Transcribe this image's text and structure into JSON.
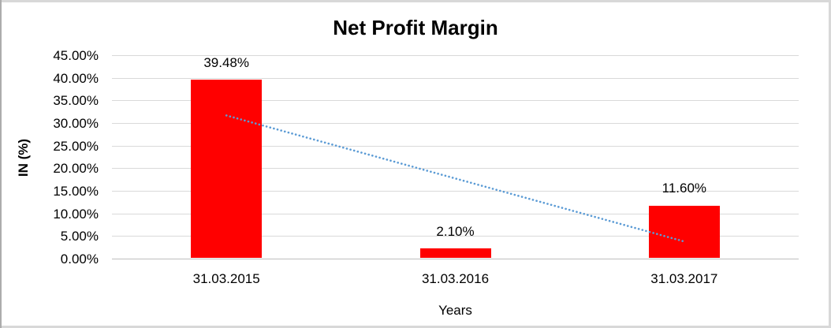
{
  "chart_data": {
    "type": "bar",
    "title": "Net Profit Margin",
    "categories": [
      "31.03.2015",
      "31.03.2016",
      "31.03.2017"
    ],
    "series": [
      {
        "name": "Net Profit Margin",
        "values": [
          39.48,
          2.1,
          11.6
        ]
      }
    ],
    "data_labels": [
      "39.48%",
      "2.10%",
      "11.60%"
    ],
    "xlabel": "Years",
    "ylabel": "IN (%)",
    "ylim": [
      0,
      45
    ],
    "ytick_step": 5,
    "ytick_labels": [
      "45.00%",
      "40.00%",
      "35.00%",
      "30.00%",
      "25.00%",
      "20.00%",
      "15.00%",
      "10.00%",
      "5.00%",
      "0.00%"
    ],
    "grid": true,
    "legend": "none",
    "trendline": {
      "type": "linear",
      "style": "dotted",
      "start_value": 31.67,
      "end_value": 3.79
    },
    "colors": {
      "bar": "#FF0000",
      "trendline": "#5B9BD5",
      "gridline": "#D9D9D9",
      "axis_line": "#BFBFBF",
      "text": "#000000",
      "frame_border": "#D8D8D8",
      "frame_border_left": "#ACACAC"
    }
  }
}
